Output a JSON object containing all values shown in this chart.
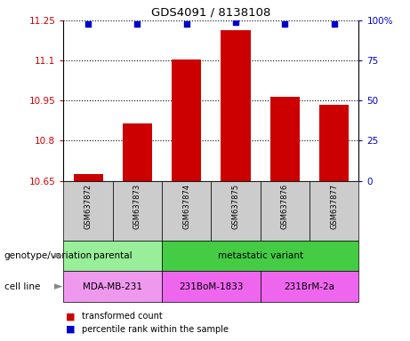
{
  "title": "GDS4091 / 8138108",
  "categories": [
    "GSM637872",
    "GSM637873",
    "GSM637874",
    "GSM637875",
    "GSM637876",
    "GSM637877"
  ],
  "bar_values": [
    10.675,
    10.865,
    11.105,
    11.215,
    10.965,
    10.935
  ],
  "percentile_values": [
    98,
    98,
    98,
    99,
    98,
    98
  ],
  "ylim_left": [
    10.65,
    11.25
  ],
  "ylim_right": [
    0,
    100
  ],
  "yticks_left": [
    10.65,
    10.8,
    10.95,
    11.1,
    11.25
  ],
  "ytick_labels_left": [
    "10.65",
    "10.8",
    "10.95",
    "11.1",
    "11.25"
  ],
  "yticks_right": [
    0,
    25,
    50,
    75,
    100
  ],
  "ytick_labels_right": [
    "0",
    "25",
    "50",
    "75",
    "100%"
  ],
  "bar_color": "#cc0000",
  "dot_color": "#0000cc",
  "bg_color": "#ffffff",
  "label_area_color": "#cccccc",
  "genotype_groups": [
    {
      "label": "parental",
      "span": [
        0,
        2
      ],
      "color": "#99ee99"
    },
    {
      "label": "metastatic variant",
      "span": [
        2,
        6
      ],
      "color": "#44cc44"
    }
  ],
  "cell_line_groups": [
    {
      "label": "MDA-MB-231",
      "span": [
        0,
        2
      ],
      "color": "#ee99ee"
    },
    {
      "label": "231BoM-1833",
      "span": [
        2,
        4
      ],
      "color": "#ee66ee"
    },
    {
      "label": "231BrM-2a",
      "span": [
        4,
        6
      ],
      "color": "#ee66ee"
    }
  ],
  "legend_items": [
    {
      "color": "#cc0000",
      "label": "transformed count"
    },
    {
      "color": "#0000cc",
      "label": "percentile rank within the sample"
    }
  ],
  "genotype_label": "genotype/variation",
  "cell_line_label": "cell line"
}
